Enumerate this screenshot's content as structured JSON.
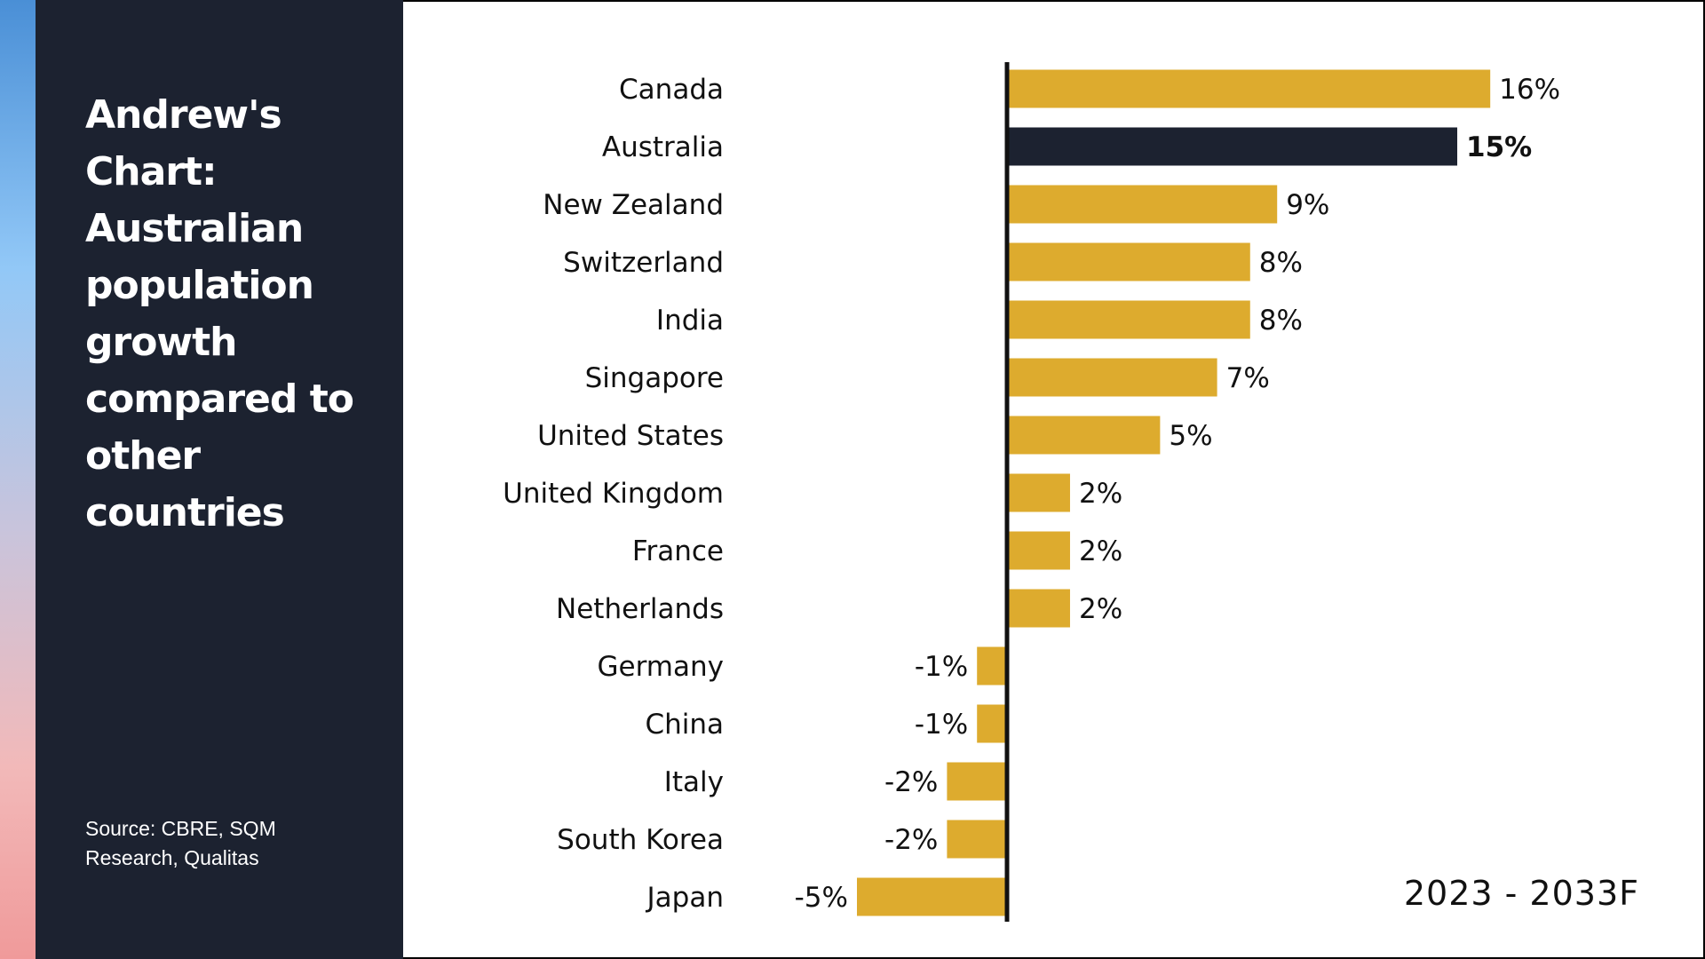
{
  "sidebar": {
    "title": "Andrew's Chart: Australian population growth compared to other countries",
    "source": "Source: CBRE, SQM Research, Qualitas"
  },
  "period_label": "2023 - 2033F",
  "colors": {
    "sidebar_bg": "#1c2230",
    "bar_default": "#ddab2e",
    "bar_highlight": "#1c2230",
    "axis": "#111111"
  },
  "chart_data": {
    "type": "bar",
    "orientation": "horizontal",
    "categories": [
      "Canada",
      "Australia",
      "New Zealand",
      "Switzerland",
      "India",
      "Singapore",
      "United States",
      "United Kingdom",
      "France",
      "Netherlands",
      "Germany",
      "China",
      "Italy",
      "South Korea",
      "Japan"
    ],
    "values": [
      16.1,
      15.0,
      9.0,
      8.1,
      8.1,
      7.0,
      5.1,
      2.1,
      2.1,
      2.1,
      -1.0,
      -1.0,
      -2.0,
      -2.0,
      -5.0
    ],
    "value_labels": [
      "16%",
      "15%",
      "9%",
      "8%",
      "8%",
      "7%",
      "5%",
      "2%",
      "2%",
      "2%",
      "-1%",
      "-1%",
      "-2%",
      "-2%",
      "-5%"
    ],
    "highlight": "Australia",
    "title": "",
    "xlabel": "",
    "ylabel": "",
    "xlim": [
      -5,
      16
    ],
    "grid": false,
    "legend": "none"
  }
}
